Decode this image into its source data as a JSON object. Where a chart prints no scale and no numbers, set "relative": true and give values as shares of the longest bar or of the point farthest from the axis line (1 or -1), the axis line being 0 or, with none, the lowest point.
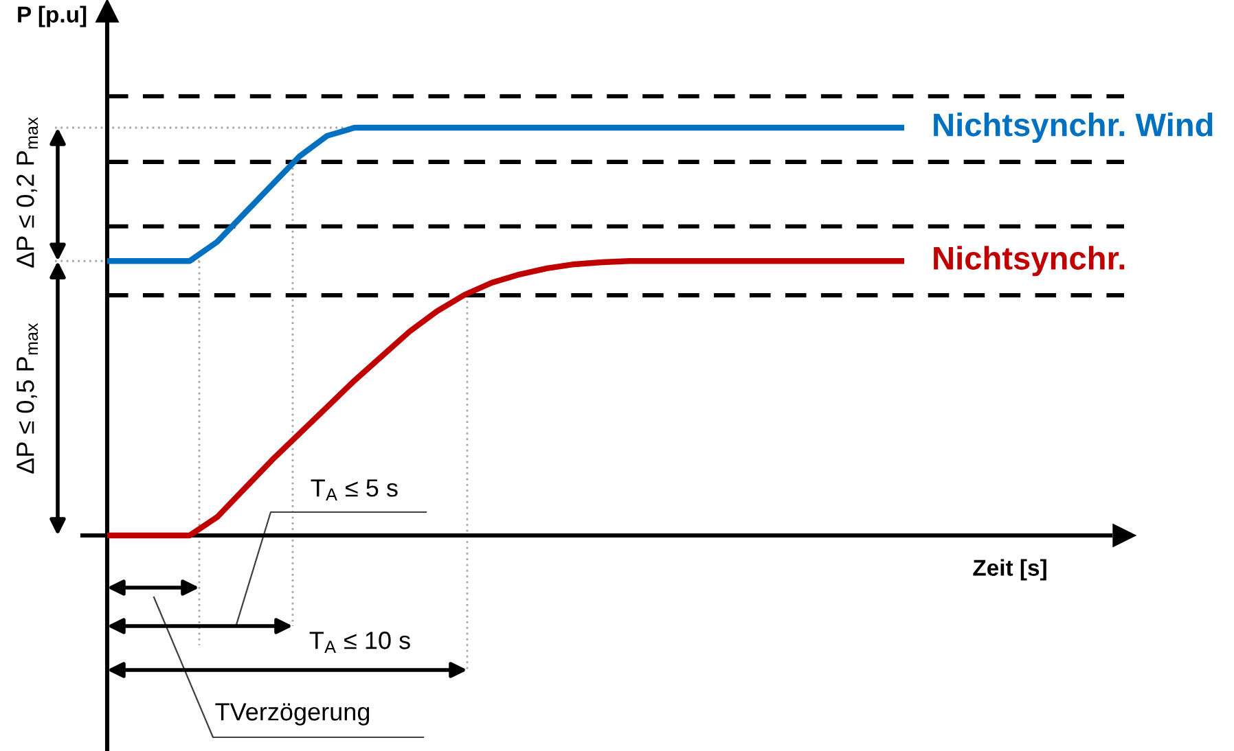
{
  "chart_data": {
    "type": "line",
    "relative": true,
    "legend": false,
    "ylabel": "P [p.u]",
    "xlabel": "Zeit [s]",
    "categories": [
      null,
      null,
      null,
      null,
      null,
      null,
      null,
      null,
      null,
      null,
      null,
      null,
      null,
      null,
      null,
      null,
      null,
      null,
      null,
      null,
      null,
      null,
      null,
      null,
      null,
      null,
      null,
      null,
      null,
      null,
      null,
      null,
      null,
      null,
      null,
      null,
      null
    ],
    "series": [
      {
        "name": "Nichtsynchr. Wind",
        "color": "#0070c0",
        "values": [
          0.673,
          0.673,
          0.673,
          0.673,
          0.72,
          0.79,
          0.86,
          0.93,
          0.98,
          1,
          1,
          1,
          1,
          1,
          1,
          1,
          1,
          1,
          1,
          1,
          1,
          1,
          1,
          1,
          1,
          1,
          1,
          1,
          1,
          1,
          null,
          null,
          null,
          null,
          null,
          null,
          null
        ]
      },
      {
        "name": "Nichtsynchr.",
        "color": "#c00000",
        "values": [
          0,
          0,
          0,
          0,
          0.045,
          0.115,
          0.185,
          0.25,
          0.315,
          0.38,
          0.44,
          0.5,
          0.55,
          0.59,
          0.62,
          0.64,
          0.655,
          0.665,
          0.67,
          0.673,
          0.673,
          0.673,
          0.673,
          0.673,
          0.673,
          0.673,
          0.673,
          0.673,
          0.673,
          0.673,
          null,
          null,
          null,
          null,
          null,
          null,
          null
        ]
      }
    ],
    "ref_lines": [
      {
        "axis": "y",
        "value": 1.077,
        "color": "#000000",
        "line_style": "dashed"
      },
      {
        "axis": "y",
        "value": 0.916,
        "color": "#000000",
        "line_style": "dashed"
      },
      {
        "axis": "y",
        "value": 0.758,
        "color": "#000000",
        "line_style": "dashed"
      },
      {
        "axis": "y",
        "value": 0.589,
        "color": "#000000",
        "line_style": "dashed"
      },
      {
        "axis": "y",
        "value": 1,
        "color": "#a6a6a6",
        "line_style": "dotted"
      },
      {
        "axis": "y",
        "value": 0.673,
        "color": "#a6a6a6",
        "line_style": "dotted"
      }
    ],
    "annotations": [
      "ΔP ≤ 0,2 P$_{max}$",
      "ΔP ≤ 0,5 P$_{max}$",
      "T$_{A}$ ≤ 5 s",
      "T$_{A}$ ≤ 10 s",
      "TVerzögerung"
    ]
  }
}
